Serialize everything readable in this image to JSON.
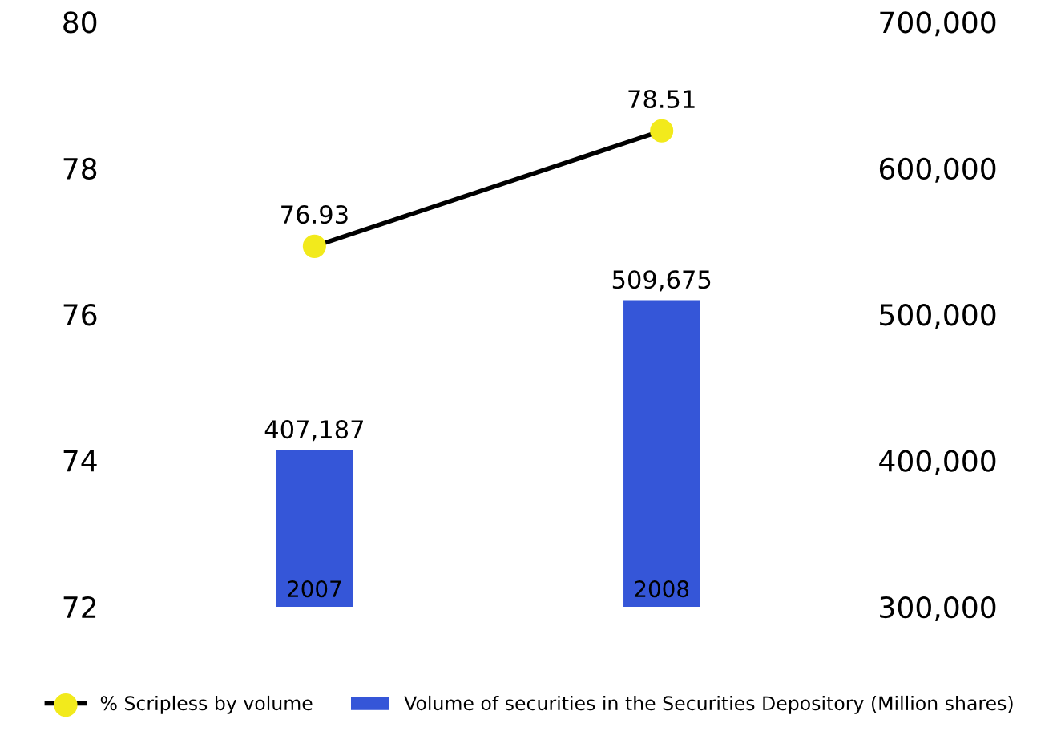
{
  "chart_data": {
    "type": "bar",
    "categories": [
      "2007",
      "2008"
    ],
    "series": [
      {
        "name": "% Scripless by volume",
        "type": "line",
        "axis": "y",
        "color": "#000000",
        "colors": [
          "#f2ea1c",
          "#f2ea1c"
        ],
        "values": [
          76.93,
          78.51
        ],
        "value_labels": [
          "76.93",
          "78.51"
        ]
      },
      {
        "name": "Volume of securities in the Securities Depository (Million shares)",
        "axis": "y2",
        "color": "#3556d8",
        "values": [
          407187,
          509675
        ],
        "value_labels": [
          "407,187",
          "509,675"
        ]
      }
    ],
    "ylim": [
      72,
      80
    ],
    "yticks": [
      72,
      74,
      76,
      78,
      80
    ],
    "y2lim": [
      300000,
      700000
    ],
    "y2ticks": [
      {
        "value": 300000,
        "label": "300,000"
      },
      {
        "value": 400000,
        "label": "400,000"
      },
      {
        "value": 500000,
        "label": "500,000"
      },
      {
        "value": 600000,
        "label": "600,000"
      },
      {
        "value": 700000,
        "label": "700,000"
      }
    ],
    "marker": "circle",
    "line_style": "solid",
    "grid": false,
    "legend": "bottom"
  }
}
